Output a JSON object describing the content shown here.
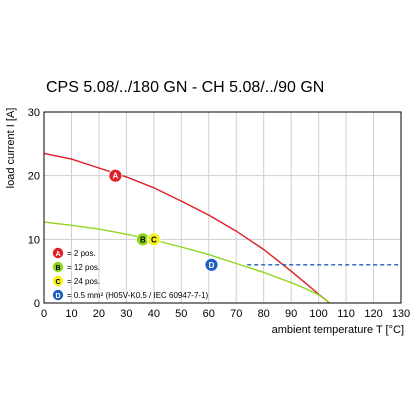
{
  "chart_data": {
    "type": "line",
    "title": "CPS 5.08/../180 GN - CH 5.08/../90 GN",
    "xlabel": "ambient temperature T [°C]",
    "ylabel": "load current I [A]",
    "xlim": [
      0,
      130
    ],
    "ylim": [
      0,
      30
    ],
    "xticks": [
      0,
      10,
      20,
      30,
      40,
      50,
      60,
      70,
      80,
      90,
      100,
      110,
      120,
      130
    ],
    "yticks": [
      0,
      10,
      20,
      30
    ],
    "grid": true,
    "legend_position": "bottom-left",
    "series": [
      {
        "name": "A",
        "label": "= 2 pos.",
        "color": "#dd1f26",
        "style": "solid",
        "x": [
          0,
          10,
          20,
          30,
          40,
          50,
          60,
          70,
          80,
          90,
          95,
          100,
          104
        ],
        "y": [
          23.5,
          22.6,
          21.2,
          19.8,
          18.1,
          16.0,
          13.8,
          11.3,
          8.4,
          5.0,
          3.2,
          1.4,
          0
        ],
        "marker_at": [
          26,
          20
        ]
      },
      {
        "name": "B",
        "label": "= 12 pos.",
        "color": "#8fd61c",
        "style": "solid",
        "x": [
          0,
          10,
          20,
          30,
          40,
          50,
          60,
          70,
          80,
          90,
          95,
          100,
          104
        ],
        "y": [
          12.7,
          12.2,
          11.6,
          10.8,
          9.9,
          8.8,
          7.6,
          6.2,
          4.8,
          3.2,
          2.3,
          1.3,
          0
        ],
        "marker_at": [
          36,
          10
        ]
      },
      {
        "name": "C",
        "label": "= 24 pos.",
        "color": "#f2f21e",
        "style": "solid",
        "x": [
          0,
          10,
          20,
          30,
          40,
          50,
          60,
          70,
          80,
          90,
          95,
          100,
          104
        ],
        "y": [
          12.7,
          12.2,
          11.6,
          10.8,
          9.9,
          8.8,
          7.6,
          6.2,
          4.8,
          3.2,
          2.3,
          1.3,
          0
        ],
        "marker_at": [
          40,
          10
        ]
      },
      {
        "name": "D",
        "label": "= 0.5 mm² (H05V-K0.5 / IEC 60947-7-1)",
        "color": "#1f5fbf",
        "style": "dashed",
        "x": [
          74,
          130
        ],
        "y": [
          6,
          6
        ],
        "marker_at": [
          61,
          6
        ]
      }
    ]
  }
}
